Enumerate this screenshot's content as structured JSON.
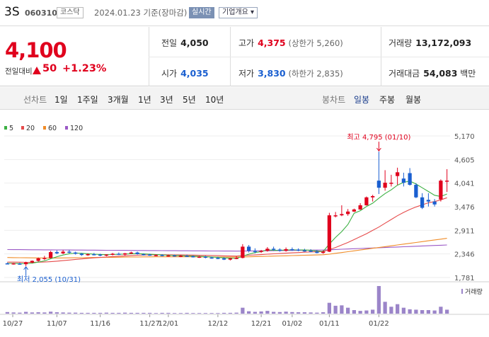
{
  "header": {
    "name": "3S",
    "code": "060310",
    "market": "코스닥",
    "date": "2024.01.23 기준(장마감)",
    "realtime_label": "실시간",
    "company_info_label": "기업개요 ▾"
  },
  "summary": {
    "price": "4,100",
    "change_label": "전일대비",
    "change": "50",
    "change_pct": "+1.23%",
    "prev_close_label": "전일",
    "prev_close": "4,050",
    "high_label": "고가",
    "high": "4,375",
    "upper_limit": "(상한가 5,260)",
    "volume_label": "거래량",
    "volume": "13,172,093",
    "open_label": "시가",
    "open": "4,035",
    "low_label": "저가",
    "low": "3,830",
    "lower_limit": "(하한가 2,835)",
    "value_label": "거래대금",
    "value": "54,083",
    "value_unit": "백만"
  },
  "toolbar": {
    "line_chart_label": "선차트",
    "periods": [
      "1일",
      "1주일",
      "3개월",
      "1년",
      "3년",
      "5년",
      "10년"
    ],
    "candle_chart_label": "봉차트",
    "candle_periods": [
      "일봉",
      "주봉",
      "월봉"
    ],
    "selected_candle": "일봉"
  },
  "colors": {
    "up": "#e0001d",
    "down": "#1a5fd0",
    "ma5": "#3cb043",
    "ma20": "#e64b4b",
    "ma60": "#f08c28",
    "ma120": "#9b59c6",
    "volume": "#9b85c9"
  },
  "chart_data": {
    "type": "candlestick",
    "legend": [
      {
        "name": "5",
        "color": "#3cb043"
      },
      {
        "name": "20",
        "color": "#e64b4b"
      },
      {
        "name": "60",
        "color": "#f08c28"
      },
      {
        "name": "120",
        "color": "#9b59c6"
      }
    ],
    "y_ticks": [
      "5,170",
      "4,605",
      "4,041",
      "3,476",
      "2,911",
      "2,346",
      "1,781"
    ],
    "ylim": [
      1781,
      5170
    ],
    "x_labels": [
      "10/27",
      "11/07",
      "11/16",
      "11/27",
      "12/01",
      "12/12",
      "12/21",
      "01/02",
      "01/11",
      "01/22"
    ],
    "annotations": {
      "high": "최고 4,795 (01/10)",
      "low": "최저 2,055 (10/31)"
    },
    "volume_label": "거래량",
    "ohlc": [
      [
        2120,
        2140,
        2100,
        2110
      ],
      [
        2110,
        2130,
        2090,
        2120
      ],
      [
        2115,
        2135,
        2085,
        2100
      ],
      [
        2100,
        2160,
        2055,
        2140
      ],
      [
        2140,
        2190,
        2120,
        2180
      ],
      [
        2180,
        2260,
        2160,
        2240
      ],
      [
        2240,
        2300,
        2200,
        2250
      ],
      [
        2250,
        2420,
        2240,
        2390
      ],
      [
        2390,
        2430,
        2340,
        2360
      ],
      [
        2360,
        2440,
        2340,
        2400
      ],
      [
        2400,
        2440,
        2360,
        2380
      ],
      [
        2380,
        2400,
        2330,
        2350
      ],
      [
        2350,
        2370,
        2300,
        2320
      ],
      [
        2320,
        2360,
        2300,
        2340
      ],
      [
        2340,
        2370,
        2310,
        2330
      ],
      [
        2330,
        2350,
        2290,
        2310
      ],
      [
        2310,
        2340,
        2290,
        2330
      ],
      [
        2330,
        2370,
        2310,
        2350
      ],
      [
        2350,
        2380,
        2320,
        2330
      ],
      [
        2330,
        2370,
        2310,
        2360
      ],
      [
        2360,
        2400,
        2340,
        2380
      ],
      [
        2380,
        2400,
        2330,
        2340
      ],
      [
        2340,
        2360,
        2310,
        2330
      ],
      [
        2330,
        2350,
        2300,
        2310
      ],
      [
        2310,
        2340,
        2290,
        2320
      ],
      [
        2320,
        2340,
        2290,
        2300
      ],
      [
        2300,
        2330,
        2280,
        2310
      ],
      [
        2310,
        2330,
        2280,
        2290
      ],
      [
        2290,
        2320,
        2270,
        2300
      ],
      [
        2300,
        2330,
        2280,
        2290
      ],
      [
        2290,
        2310,
        2260,
        2270
      ],
      [
        2270,
        2300,
        2250,
        2280
      ],
      [
        2280,
        2300,
        2240,
        2260
      ],
      [
        2260,
        2280,
        2230,
        2250
      ],
      [
        2250,
        2280,
        2220,
        2240
      ],
      [
        2240,
        2270,
        2200,
        2210
      ],
      [
        2210,
        2250,
        2190,
        2240
      ],
      [
        2240,
        2290,
        2220,
        2250
      ],
      [
        2250,
        2580,
        2240,
        2520
      ],
      [
        2520,
        2560,
        2380,
        2420
      ],
      [
        2420,
        2480,
        2360,
        2400
      ],
      [
        2400,
        2440,
        2370,
        2420
      ],
      [
        2420,
        2510,
        2400,
        2470
      ],
      [
        2470,
        2520,
        2420,
        2450
      ],
      [
        2450,
        2480,
        2400,
        2420
      ],
      [
        2420,
        2500,
        2400,
        2460
      ],
      [
        2460,
        2500,
        2420,
        2450
      ],
      [
        2450,
        2480,
        2410,
        2430
      ],
      [
        2430,
        2470,
        2400,
        2420
      ],
      [
        2420,
        2460,
        2390,
        2400
      ],
      [
        2400,
        2440,
        2360,
        2370
      ],
      [
        2370,
        2430,
        2350,
        2400
      ],
      [
        2400,
        3330,
        2390,
        3270
      ],
      [
        3270,
        3350,
        3220,
        3270
      ],
      [
        3270,
        3510,
        3250,
        3300
      ],
      [
        3300,
        3420,
        3260,
        3360
      ],
      [
        3360,
        3430,
        3350,
        3410
      ],
      [
        3410,
        3560,
        3400,
        3510
      ],
      [
        3510,
        3720,
        3500,
        3700
      ],
      [
        3700,
        3760,
        3600,
        3730
      ],
      [
        4100,
        4795,
        3780,
        3930
      ],
      [
        3930,
        4350,
        3860,
        4050
      ],
      [
        4040,
        4240,
        3960,
        4050
      ],
      [
        4210,
        4410,
        4000,
        4300
      ],
      [
        4150,
        4290,
        3960,
        4050
      ],
      [
        4280,
        4400,
        3980,
        4000
      ],
      [
        4000,
        4040,
        3680,
        3700
      ],
      [
        3700,
        3800,
        3420,
        3450
      ],
      [
        3640,
        3800,
        3480,
        3600
      ],
      [
        3600,
        3660,
        3480,
        3530
      ],
      [
        3650,
        4130,
        3600,
        4100
      ],
      [
        4100,
        4375,
        3830,
        4100
      ]
    ],
    "ma5": [
      2120,
      2118,
      2115,
      2112,
      2125,
      2150,
      2180,
      2230,
      2280,
      2320,
      2350,
      2365,
      2360,
      2350,
      2340,
      2333,
      2328,
      2332,
      2338,
      2342,
      2350,
      2352,
      2348,
      2340,
      2330,
      2322,
      2315,
      2310,
      2304,
      2300,
      2294,
      2288,
      2282,
      2272,
      2262,
      2252,
      2245,
      2240,
      2290,
      2340,
      2380,
      2402,
      2446,
      2432,
      2432,
      2440,
      2444,
      2442,
      2440,
      2432,
      2414,
      2404,
      2580,
      2740,
      2880,
      3050,
      3320,
      3380,
      3480,
      3560,
      3680,
      3790,
      3880,
      3990,
      4060,
      4090,
      4020,
      3930,
      3840,
      3750,
      3720,
      3780
    ],
    "ma20": [
      2150,
      2150,
      2148,
      2146,
      2145,
      2148,
      2152,
      2160,
      2172,
      2186,
      2200,
      2214,
      2226,
      2240,
      2252,
      2262,
      2272,
      2282,
      2292,
      2300,
      2308,
      2314,
      2320,
      2324,
      2326,
      2326,
      2325,
      2324,
      2322,
      2320,
      2318,
      2315,
      2312,
      2308,
      2304,
      2300,
      2296,
      2294,
      2304,
      2314,
      2322,
      2330,
      2340,
      2348,
      2356,
      2364,
      2372,
      2380,
      2388,
      2394,
      2398,
      2402,
      2450,
      2500,
      2560,
      2620,
      2690,
      2760,
      2830,
      2910,
      2990,
      3080,
      3170,
      3260,
      3340,
      3410,
      3470,
      3520,
      3570,
      3600,
      3640,
      3690
    ],
    "ma60": [
      2260,
      2258,
      2256,
      2254,
      2252,
      2250,
      2248,
      2248,
      2248,
      2250,
      2252,
      2254,
      2256,
      2258,
      2260,
      2262,
      2264,
      2266,
      2268,
      2270,
      2272,
      2274,
      2275,
      2276,
      2277,
      2278,
      2278,
      2278,
      2278,
      2278,
      2277,
      2276,
      2275,
      2274,
      2273,
      2272,
      2271,
      2270,
      2274,
      2278,
      2282,
      2286,
      2290,
      2294,
      2298,
      2302,
      2306,
      2310,
      2314,
      2318,
      2322,
      2326,
      2340,
      2360,
      2380,
      2400,
      2420,
      2440,
      2460,
      2480,
      2500,
      2520,
      2540,
      2560,
      2580,
      2600,
      2620,
      2640,
      2660,
      2680,
      2700,
      2720
    ],
    "ma120": [
      2450,
      2449,
      2448,
      2447,
      2446,
      2445,
      2444,
      2443,
      2442,
      2441,
      2440,
      2439,
      2438,
      2437,
      2436,
      2435,
      2434,
      2433,
      2432,
      2431,
      2430,
      2429,
      2428,
      2427,
      2426,
      2425,
      2424,
      2423,
      2422,
      2421,
      2420,
      2419,
      2418,
      2417,
      2416,
      2415,
      2414,
      2413,
      2414,
      2416,
      2418,
      2420,
      2422,
      2424,
      2426,
      2428,
      2430,
      2432,
      2434,
      2436,
      2438,
      2440,
      2446,
      2452,
      2458,
      2464,
      2470,
      2476,
      2482,
      2488,
      2494,
      2500,
      2506,
      2512,
      2518,
      2524,
      2530,
      2536,
      2542,
      2548,
      2554,
      2560
    ],
    "volume": [
      8,
      6,
      5,
      9,
      6,
      7,
      6,
      10,
      7,
      6,
      5,
      5,
      4,
      4,
      4,
      4,
      5,
      4,
      4,
      5,
      4,
      4,
      4,
      4,
      3,
      4,
      4,
      3,
      3,
      4,
      3,
      3,
      3,
      3,
      3,
      4,
      4,
      5,
      30,
      12,
      9,
      11,
      14,
      9,
      8,
      10,
      8,
      7,
      7,
      6,
      5,
      7,
      55,
      40,
      42,
      30,
      18,
      14,
      16,
      20,
      140,
      60,
      35,
      48,
      30,
      22,
      20,
      18,
      18,
      16,
      35,
      20
    ]
  }
}
